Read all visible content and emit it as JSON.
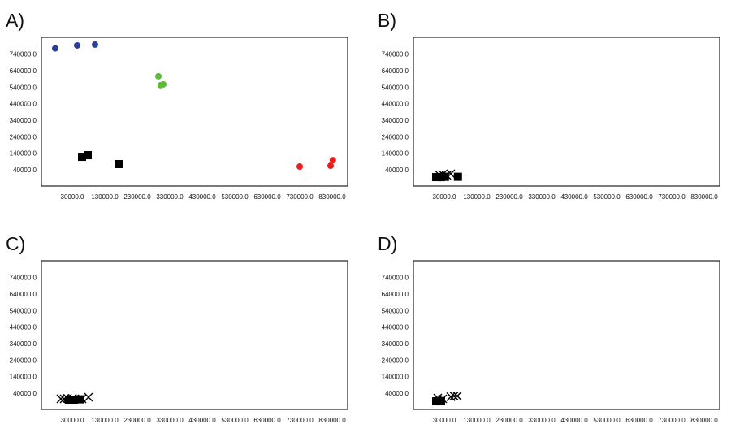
{
  "chart_data": [
    {
      "panel_label": "A)",
      "type": "scatter",
      "xlim": [
        -65000,
        877500
      ],
      "ylim": [
        -59000,
        842000
      ],
      "xticks": [
        "30000.0",
        "130000.0",
        "230000.0",
        "330000.0",
        "430000.0",
        "530000.0",
        "630000.0",
        "730000.0",
        "830000.0"
      ],
      "yticks": [
        "40000.0",
        "140000.0",
        "240000.0",
        "340000.0",
        "440000.0",
        "540000.0",
        "640000.0",
        "740000.0"
      ],
      "series": [
        {
          "name": "blue",
          "marker": "circle",
          "color": "#2b3f9a",
          "points": [
            [
              -22500,
              775000
            ],
            [
              45000,
              793000
            ],
            [
              100000,
              798000
            ]
          ]
        },
        {
          "name": "green",
          "marker": "circle",
          "color": "#5dbb3a",
          "points": [
            [
              295000,
              606000
            ],
            [
              302000,
              552000
            ],
            [
              310000,
              557000
            ]
          ]
        },
        {
          "name": "black",
          "marker": "square",
          "color": "#000000",
          "points": [
            [
              60000,
              118000
            ],
            [
              77500,
              128000
            ],
            [
              172500,
              74000
            ]
          ]
        },
        {
          "name": "red",
          "marker": "circle",
          "color": "#ee1c1c",
          "points": [
            [
              730000,
              59000
            ],
            [
              825000,
              64000
            ],
            [
              832000,
              98000
            ]
          ]
        }
      ]
    },
    {
      "panel_label": "B)",
      "type": "scatter",
      "xlim": [
        -65000,
        877500
      ],
      "ylim": [
        -59000,
        842000
      ],
      "xticks": [
        "30000.0",
        "130000.0",
        "230000.0",
        "330000.0",
        "430000.0",
        "530000.0",
        "630000.0",
        "730000.0",
        "830000.0"
      ],
      "yticks": [
        "40000.0",
        "140000.0",
        "240000.0",
        "340000.0",
        "440000.0",
        "540000.0",
        "640000.0",
        "740000.0"
      ],
      "series": [
        {
          "name": "squares",
          "marker": "square",
          "color": "#000000",
          "points": [
            [
              5000,
              -5000
            ],
            [
              20000,
              -5000
            ],
            [
              32000,
              -3000
            ],
            [
              72000,
              -3000
            ]
          ]
        },
        {
          "name": "crosses",
          "marker": "x",
          "color": "#000000",
          "points": [
            [
              15000,
              8000
            ],
            [
              25000,
              12000
            ],
            [
              38000,
              5000
            ],
            [
              50000,
              15000
            ],
            [
              30000,
              -5000
            ]
          ]
        }
      ]
    },
    {
      "panel_label": "C)",
      "type": "scatter",
      "xlim": [
        -65000,
        877500
      ],
      "ylim": [
        -59000,
        842000
      ],
      "xticks": [
        "30000.0",
        "130000.0",
        "230000.0",
        "330000.0",
        "430000.0",
        "530000.0",
        "630000.0",
        "730000.0",
        "830000.0"
      ],
      "yticks": [
        "40000.0",
        "140000.0",
        "240000.0",
        "340000.0",
        "440000.0",
        "540000.0",
        "640000.0",
        "740000.0"
      ],
      "series": [
        {
          "name": "squares",
          "marker": "square",
          "color": "#000000",
          "points": [
            [
              20000,
              0
            ],
            [
              35000,
              0
            ],
            [
              55000,
              2000
            ]
          ]
        },
        {
          "name": "crosses",
          "marker": "x",
          "color": "#000000",
          "points": [
            [
              -5000,
              5000
            ],
            [
              5000,
              5000
            ],
            [
              15000,
              8000
            ],
            [
              30000,
              8000
            ],
            [
              60000,
              5000
            ],
            [
              80000,
              15000
            ]
          ]
        }
      ]
    },
    {
      "panel_label": "D)",
      "type": "scatter",
      "xlim": [
        -65000,
        877500
      ],
      "ylim": [
        -59000,
        842000
      ],
      "xticks": [
        "30000.0",
        "130000.0",
        "230000.0",
        "330000.0",
        "430000.0",
        "530000.0",
        "630000.0",
        "730000.0",
        "830000.0"
      ],
      "yticks": [
        "40000.0",
        "140000.0",
        "240000.0",
        "340000.0",
        "440000.0",
        "540000.0",
        "640000.0",
        "740000.0"
      ],
      "series": [
        {
          "name": "squares",
          "marker": "square",
          "color": "#000000",
          "points": [
            [
              5000,
              -10000
            ],
            [
              20000,
              -10000
            ],
            [
              12000,
              -8000
            ]
          ]
        },
        {
          "name": "crosses",
          "marker": "x",
          "color": "#000000",
          "points": [
            [
              10000,
              10000
            ],
            [
              25000,
              5000
            ],
            [
              50000,
              18000
            ],
            [
              60000,
              22000
            ],
            [
              70000,
              22000
            ]
          ]
        }
      ]
    }
  ]
}
